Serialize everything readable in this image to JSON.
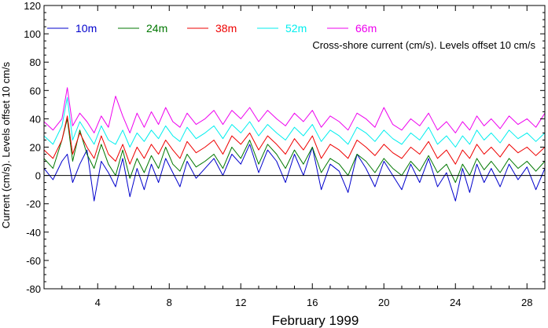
{
  "chart_data": {
    "type": "line",
    "xlabel": "February 1999",
    "ylabel": "Current (cm/s). Levels offset 10 cm/s",
    "annotation": "Cross-shore current (cm/s). Levels offset 10 cm/s",
    "xlim": [
      1,
      29
    ],
    "ylim": [
      -80,
      120
    ],
    "x_ticks": [
      4,
      8,
      12,
      16,
      20,
      24,
      28
    ],
    "y_ticks": [
      -80,
      -60,
      -40,
      -20,
      0,
      20,
      40,
      60,
      80,
      100,
      120
    ],
    "zero_line": 0,
    "grid": false,
    "legend_position": "top",
    "series": [
      {
        "name": "10m",
        "color": "#0000cc",
        "offset": 0,
        "x": [
          1.0,
          1.5,
          2.0,
          2.3,
          2.6,
          3.0,
          3.4,
          3.8,
          4.2,
          4.6,
          5.0,
          5.4,
          5.8,
          6.2,
          6.6,
          7.0,
          7.4,
          7.8,
          8.2,
          8.6,
          9.0,
          9.5,
          10.0,
          10.5,
          11.0,
          11.5,
          12.0,
          12.5,
          13.0,
          13.5,
          14.0,
          14.5,
          15.0,
          15.5,
          16.0,
          16.5,
          17.0,
          17.5,
          18.0,
          18.5,
          19.0,
          19.5,
          20.0,
          20.5,
          21.0,
          21.5,
          22.0,
          22.5,
          23.0,
          23.5,
          24.0,
          24.4,
          24.8,
          25.2,
          25.6,
          26.0,
          26.5,
          27.0,
          27.5,
          28.0,
          28.5,
          29.0
        ],
        "y": [
          5,
          -3,
          10,
          15,
          -5,
          8,
          18,
          -18,
          10,
          2,
          -8,
          12,
          -15,
          5,
          -10,
          8,
          -5,
          12,
          2,
          -8,
          10,
          -2,
          5,
          12,
          0,
          15,
          8,
          22,
          2,
          18,
          10,
          -5,
          15,
          0,
          20,
          -10,
          8,
          3,
          -12,
          15,
          5,
          -8,
          10,
          0,
          -10,
          8,
          -5,
          12,
          -8,
          2,
          -18,
          5,
          -12,
          8,
          -5,
          5,
          -8,
          8,
          -3,
          6,
          -10,
          5
        ]
      },
      {
        "name": "24m",
        "color": "#007700",
        "offset": 10,
        "x": [
          1.0,
          1.5,
          2.0,
          2.3,
          2.6,
          3.0,
          3.4,
          3.8,
          4.2,
          4.6,
          5.0,
          5.4,
          5.8,
          6.2,
          6.6,
          7.0,
          7.4,
          7.8,
          8.2,
          8.6,
          9.0,
          9.5,
          10.0,
          10.5,
          11.0,
          11.5,
          12.0,
          12.5,
          13.0,
          13.5,
          14.0,
          14.5,
          15.0,
          15.5,
          16.0,
          16.5,
          17.0,
          17.5,
          18.0,
          18.5,
          19.0,
          19.5,
          20.0,
          20.5,
          21.0,
          21.5,
          22.0,
          22.5,
          23.0,
          23.5,
          24.0,
          24.4,
          24.8,
          25.2,
          25.6,
          26.0,
          26.5,
          27.0,
          27.5,
          28.0,
          28.5,
          29.0
        ],
        "y": [
          12,
          5,
          25,
          40,
          10,
          32,
          15,
          5,
          22,
          8,
          0,
          18,
          -2,
          12,
          2,
          14,
          5,
          20,
          8,
          3,
          15,
          6,
          10,
          15,
          5,
          20,
          12,
          25,
          8,
          22,
          15,
          5,
          18,
          8,
          20,
          2,
          12,
          8,
          0,
          15,
          10,
          2,
          12,
          5,
          0,
          10,
          3,
          14,
          2,
          8,
          -5,
          8,
          0,
          12,
          4,
          10,
          2,
          12,
          5,
          10,
          3,
          10
        ]
      },
      {
        "name": "38m",
        "color": "#ee0000",
        "offset": 20,
        "x": [
          1.0,
          1.5,
          2.0,
          2.3,
          2.6,
          3.0,
          3.4,
          3.8,
          4.2,
          4.6,
          5.0,
          5.4,
          5.8,
          6.2,
          6.6,
          7.0,
          7.4,
          7.8,
          8.2,
          8.6,
          9.0,
          9.5,
          10.0,
          10.5,
          11.0,
          11.5,
          12.0,
          12.5,
          13.0,
          13.5,
          14.0,
          14.5,
          15.0,
          15.5,
          16.0,
          16.5,
          17.0,
          17.5,
          18.0,
          18.5,
          19.0,
          19.5,
          20.0,
          20.5,
          21.0,
          21.5,
          22.0,
          22.5,
          23.0,
          23.5,
          24.0,
          24.4,
          24.8,
          25.2,
          25.6,
          26.0,
          26.5,
          27.0,
          27.5,
          28.0,
          28.5,
          29.0
        ],
        "y": [
          18,
          12,
          25,
          42,
          15,
          30,
          20,
          12,
          28,
          15,
          10,
          22,
          8,
          20,
          12,
          22,
          15,
          25,
          18,
          12,
          24,
          16,
          20,
          25,
          15,
          28,
          22,
          30,
          18,
          28,
          22,
          15,
          26,
          18,
          28,
          12,
          22,
          18,
          12,
          25,
          20,
          14,
          22,
          16,
          12,
          20,
          15,
          24,
          12,
          18,
          8,
          18,
          12,
          22,
          15,
          20,
          13,
          22,
          16,
          20,
          14,
          20
        ]
      },
      {
        "name": "52m",
        "color": "#00eeee",
        "offset": 30,
        "x": [
          1.0,
          1.5,
          2.0,
          2.3,
          2.6,
          3.0,
          3.4,
          3.8,
          4.2,
          4.6,
          5.0,
          5.4,
          5.8,
          6.2,
          6.6,
          7.0,
          7.4,
          7.8,
          8.2,
          8.6,
          9.0,
          9.5,
          10.0,
          10.5,
          11.0,
          11.5,
          12.0,
          12.5,
          13.0,
          13.5,
          14.0,
          14.5,
          15.0,
          15.5,
          16.0,
          16.5,
          17.0,
          17.5,
          18.0,
          18.5,
          19.0,
          19.5,
          20.0,
          20.5,
          21.0,
          21.5,
          22.0,
          22.5,
          23.0,
          23.5,
          24.0,
          24.4,
          24.8,
          25.2,
          25.6,
          26.0,
          26.5,
          27.0,
          27.5,
          28.0,
          28.5,
          29.0
        ],
        "y": [
          28,
          22,
          35,
          55,
          25,
          38,
          30,
          22,
          35,
          25,
          22,
          32,
          20,
          30,
          24,
          32,
          26,
          35,
          28,
          24,
          34,
          26,
          30,
          35,
          26,
          36,
          30,
          38,
          28,
          36,
          30,
          25,
          34,
          28,
          36,
          24,
          32,
          28,
          22,
          34,
          30,
          24,
          32,
          26,
          22,
          30,
          25,
          34,
          22,
          28,
          20,
          28,
          22,
          32,
          25,
          30,
          23,
          32,
          26,
          30,
          24,
          30
        ]
      },
      {
        "name": "66m",
        "color": "#ee00ee",
        "offset": 40,
        "x": [
          1.0,
          1.5,
          2.0,
          2.3,
          2.6,
          3.0,
          3.4,
          3.8,
          4.2,
          4.6,
          5.0,
          5.4,
          5.8,
          6.2,
          6.6,
          7.0,
          7.4,
          7.8,
          8.2,
          8.6,
          9.0,
          9.5,
          10.0,
          10.5,
          11.0,
          11.5,
          12.0,
          12.5,
          13.0,
          13.5,
          14.0,
          14.5,
          15.0,
          15.5,
          16.0,
          16.5,
          17.0,
          17.5,
          18.0,
          18.5,
          19.0,
          19.5,
          20.0,
          20.5,
          21.0,
          21.5,
          22.0,
          22.5,
          23.0,
          23.5,
          24.0,
          24.4,
          24.8,
          25.2,
          25.6,
          26.0,
          26.5,
          27.0,
          27.5,
          28.0,
          28.5,
          29.0
        ],
        "y": [
          38,
          32,
          40,
          62,
          35,
          44,
          38,
          30,
          42,
          34,
          56,
          42,
          30,
          44,
          34,
          45,
          36,
          48,
          38,
          34,
          44,
          36,
          40,
          46,
          36,
          46,
          40,
          48,
          38,
          46,
          40,
          35,
          44,
          38,
          46,
          34,
          42,
          38,
          32,
          44,
          40,
          34,
          48,
          36,
          32,
          40,
          35,
          44,
          32,
          38,
          30,
          38,
          32,
          42,
          35,
          40,
          33,
          42,
          36,
          40,
          34,
          44
        ]
      }
    ]
  }
}
